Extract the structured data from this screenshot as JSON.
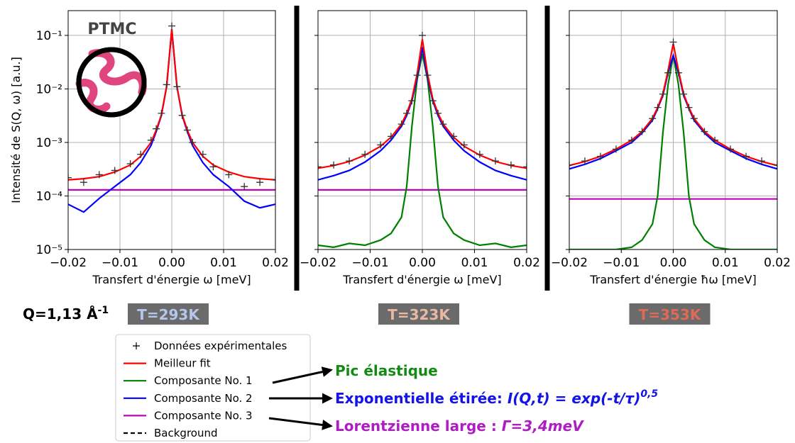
{
  "chart_data": [
    {
      "type": "line",
      "title": "T=293K",
      "title_color": "#b4c6ea",
      "xlabel": "Transfert d'énergie ω [meV]",
      "ylabel": "Intensité de S(Q, ω) [a.u.]",
      "log_y": true,
      "grid": true,
      "show_ytick_labels": true,
      "xlim": [
        -0.02,
        0.02
      ],
      "ylim": [
        1e-05,
        0.29
      ],
      "xticks": [
        {
          "value": -0.02,
          "label": "−0.02"
        },
        {
          "value": -0.01,
          "label": "−0.01"
        },
        {
          "value": 0,
          "label": "0.00"
        },
        0.01,
        0.02
      ],
      "yticks": [
        {
          "value": 1e-05,
          "label": "10⁻⁵"
        },
        {
          "value": 0.0001,
          "label": "10⁻⁴"
        },
        {
          "value": 0.001,
          "label": "10⁻³"
        },
        {
          "value": 0.01,
          "label": "10⁻²"
        },
        {
          "value": 0.1,
          "label": "10⁻¹"
        }
      ],
      "x": [
        -0.02,
        -0.017,
        -0.014,
        -0.011,
        -0.008,
        -0.006,
        -0.004,
        -0.003,
        -0.002,
        -0.001,
        0,
        0.001,
        0.002,
        0.003,
        0.004,
        0.006,
        0.008,
        0.011,
        0.014,
        0.017,
        0.02
      ],
      "series": [
        {
          "name": "Composante No. 3",
          "color": "#bf00bf",
          "style": "line",
          "values": [
            0.00013,
            0.00013,
            0.00013,
            0.00013,
            0.00013,
            0.00013,
            0.00013,
            0.00013,
            0.00013,
            0.00013,
            0.00013,
            0.00013,
            0.00013,
            0.00013,
            0.00013,
            0.00013,
            0.00013,
            0.00013,
            0.00013,
            0.00013,
            0.00013
          ]
        },
        {
          "name": "Composante No. 2",
          "color": "#0000ff",
          "style": "line",
          "values": [
            7e-05,
            5e-05,
            9e-05,
            0.00015,
            0.00025,
            0.00042,
            0.00088,
            0.0016,
            0.0032,
            0.011,
            0.13,
            0.011,
            0.0032,
            0.0016,
            0.00088,
            0.00042,
            0.00025,
            0.00015,
            8e-05,
            6e-05,
            7e-05
          ]
        },
        {
          "name": "Meilleur fit",
          "color": "#ff0000",
          "style": "line",
          "values": [
            0.0002,
            0.00021,
            0.00023,
            0.00028,
            0.00038,
            0.00055,
            0.001,
            0.0017,
            0.0033,
            0.011,
            0.13,
            0.011,
            0.0033,
            0.0017,
            0.001,
            0.00055,
            0.00038,
            0.00028,
            0.00023,
            0.00021,
            0.0002
          ]
        },
        {
          "name": "Données expérimentales",
          "color": "#333333",
          "style": "marker",
          "values": [
            0.00022,
            0.00018,
            0.00025,
            0.0003,
            0.0004,
            0.0006,
            0.0011,
            0.0018,
            0.0035,
            0.012,
            0.15,
            0.011,
            0.0032,
            0.0017,
            0.001,
            0.0006,
            0.00035,
            0.00025,
            0.00015,
            0.00018,
            0.0002
          ]
        }
      ]
    },
    {
      "type": "line",
      "title": "T=323K",
      "title_color": "#e8b8a2",
      "xlabel": "Transfert d'énergie ω [meV]",
      "log_y": true,
      "grid": true,
      "show_ytick_labels": false,
      "xlim": [
        -0.02,
        0.02
      ],
      "ylim": [
        1e-05,
        0.29
      ],
      "xticks": [
        {
          "value": -0.02,
          "label": "−0.02"
        },
        {
          "value": -0.01,
          "label": "−0.01"
        },
        {
          "value": 0,
          "label": "0.00"
        },
        0.01,
        0.02
      ],
      "yticks": [
        1e-05,
        0.0001,
        0.001,
        0.01,
        0.1
      ],
      "x": [
        -0.02,
        -0.017,
        -0.014,
        -0.011,
        -0.008,
        -0.006,
        -0.004,
        -0.003,
        -0.002,
        -0.001,
        0,
        0.001,
        0.002,
        0.003,
        0.004,
        0.006,
        0.008,
        0.011,
        0.014,
        0.017,
        0.02
      ],
      "series": [
        {
          "name": "Composante No. 3",
          "color": "#bf00bf",
          "style": "line",
          "values": [
            0.00013,
            0.00013,
            0.00013,
            0.00013,
            0.00013,
            0.00013,
            0.00013,
            0.00013,
            0.00013,
            0.00013,
            0.00013,
            0.00013,
            0.00013,
            0.00013,
            0.00013,
            0.00013,
            0.00013,
            0.00013,
            0.00013,
            0.00013,
            0.00013
          ]
        },
        {
          "name": "Composante No. 1",
          "color": "#008000",
          "style": "line",
          "values": [
            1.2e-05,
            1.1e-05,
            1.3e-05,
            1.2e-05,
            1.5e-05,
            2e-05,
            4e-05,
            0.00015,
            0.002,
            0.015,
            0.045,
            0.015,
            0.002,
            0.00015,
            4e-05,
            2e-05,
            1.5e-05,
            1.2e-05,
            1.3e-05,
            1.1e-05,
            1.2e-05
          ]
        },
        {
          "name": "Composante No. 2",
          "color": "#0000ff",
          "style": "line",
          "values": [
            0.0002,
            0.00024,
            0.0003,
            0.00043,
            0.0007,
            0.0011,
            0.002,
            0.0032,
            0.006,
            0.016,
            0.06,
            0.016,
            0.006,
            0.0032,
            0.002,
            0.0011,
            0.0007,
            0.00043,
            0.0003,
            0.00024,
            0.0002
          ]
        },
        {
          "name": "Meilleur fit",
          "color": "#ff0000",
          "style": "line",
          "values": [
            0.00033,
            0.00037,
            0.00044,
            0.00058,
            0.00085,
            0.00125,
            0.0022,
            0.0035,
            0.0065,
            0.019,
            0.085,
            0.019,
            0.0065,
            0.0035,
            0.0022,
            0.00125,
            0.00085,
            0.00058,
            0.00044,
            0.00037,
            0.00033
          ]
        },
        {
          "name": "Données expérimentales",
          "color": "#333333",
          "style": "marker",
          "values": [
            0.00035,
            0.00038,
            0.00045,
            0.0006,
            0.0009,
            0.0013,
            0.0022,
            0.0035,
            0.006,
            0.018,
            0.1,
            0.018,
            0.006,
            0.0035,
            0.0022,
            0.0013,
            0.0009,
            0.0006,
            0.00045,
            0.00038,
            0.00035
          ]
        }
      ]
    },
    {
      "type": "line",
      "title": "T=353K",
      "title_color": "#e06a58",
      "xlabel": "Transfert d'énergie ħω [meV]",
      "log_y": true,
      "grid": true,
      "show_ytick_labels": false,
      "xlim": [
        -0.02,
        0.02
      ],
      "ylim": [
        1e-05,
        0.29
      ],
      "xticks": [
        {
          "value": -0.02,
          "label": "−0.02"
        },
        {
          "value": -0.01,
          "label": "−0.01"
        },
        {
          "value": 0,
          "label": "0.00"
        },
        0.01,
        0.02
      ],
      "yticks": [
        1e-05,
        0.0001,
        0.001,
        0.01,
        0.1
      ],
      "x": [
        -0.02,
        -0.017,
        -0.014,
        -0.011,
        -0.008,
        -0.006,
        -0.004,
        -0.003,
        -0.002,
        -0.001,
        0,
        0.001,
        0.002,
        0.003,
        0.004,
        0.006,
        0.008,
        0.011,
        0.014,
        0.017,
        0.02
      ],
      "series": [
        {
          "name": "Composante No. 3",
          "color": "#bf00bf",
          "style": "line",
          "values": [
            8.8e-05,
            8.8e-05,
            8.8e-05,
            8.8e-05,
            8.8e-05,
            8.8e-05,
            8.8e-05,
            8.8e-05,
            8.8e-05,
            8.8e-05,
            8.8e-05,
            8.8e-05,
            8.8e-05,
            8.8e-05,
            8.8e-05,
            8.8e-05,
            8.8e-05,
            8.8e-05,
            8.8e-05,
            8.8e-05,
            8.8e-05
          ]
        },
        {
          "name": "Composante No. 1",
          "color": "#008000",
          "style": "line",
          "values": [
            1e-05,
            1e-05,
            1e-05,
            1e-05,
            1.1e-05,
            1.5e-05,
            3e-05,
            0.0001,
            0.0015,
            0.012,
            0.042,
            0.012,
            0.0015,
            0.0001,
            3e-05,
            1.5e-05,
            1.1e-05,
            1e-05,
            1e-05,
            1e-05,
            1e-05
          ]
        },
        {
          "name": "Composante No. 2",
          "color": "#0000ff",
          "style": "line",
          "values": [
            0.00032,
            0.00039,
            0.0005,
            0.0007,
            0.001,
            0.0015,
            0.0026,
            0.0043,
            0.0075,
            0.02,
            0.042,
            0.02,
            0.0075,
            0.0043,
            0.0026,
            0.0015,
            0.001,
            0.0007,
            0.0005,
            0.00039,
            0.00032
          ]
        },
        {
          "name": "Meilleur fit",
          "color": "#ff0000",
          "style": "line",
          "values": [
            0.00037,
            0.00044,
            0.00055,
            0.00075,
            0.0011,
            0.0016,
            0.0028,
            0.0045,
            0.008,
            0.022,
            0.07,
            0.022,
            0.008,
            0.0045,
            0.0028,
            0.0016,
            0.0011,
            0.00075,
            0.00055,
            0.00044,
            0.00037
          ]
        },
        {
          "name": "Données expérimentales",
          "color": "#333333",
          "style": "marker",
          "values": [
            0.00038,
            0.00045,
            0.00055,
            0.00075,
            0.0011,
            0.0016,
            0.0028,
            0.0045,
            0.008,
            0.02,
            0.075,
            0.02,
            0.008,
            0.0045,
            0.0028,
            0.0016,
            0.0011,
            0.00075,
            0.00055,
            0.00045,
            0.00038
          ]
        }
      ]
    }
  ],
  "q_label": {
    "text": "Q=1,13 Å",
    "superscript": "-1"
  },
  "inset_label": "PTMC",
  "legend": {
    "entries": [
      {
        "label": "Données expérimentales",
        "color": "#000000",
        "style": "marker"
      },
      {
        "label": "Meilleur fit",
        "color": "#ff0000",
        "style": "line"
      },
      {
        "label": "Composante No. 1",
        "color": "#008000",
        "style": "line"
      },
      {
        "label": "Composante No. 2",
        "color": "#0000ff",
        "style": "line"
      },
      {
        "label": "Composante No. 3",
        "color": "#bf00bf",
        "style": "line"
      },
      {
        "label": "Background",
        "color": "#000000",
        "style": "dashed"
      }
    ]
  },
  "annotations": [
    {
      "text": "Pic élastique",
      "color": "#138a13"
    },
    {
      "text": "Exponentielle étirée: ",
      "formula": "I(Q,t) = exp(-t/τ)",
      "superscript": "0,5",
      "color": "#1414e6"
    },
    {
      "text": "Lorentzienne large : ",
      "formula": "Γ=3,4meV",
      "color": "#b01cc4"
    }
  ]
}
